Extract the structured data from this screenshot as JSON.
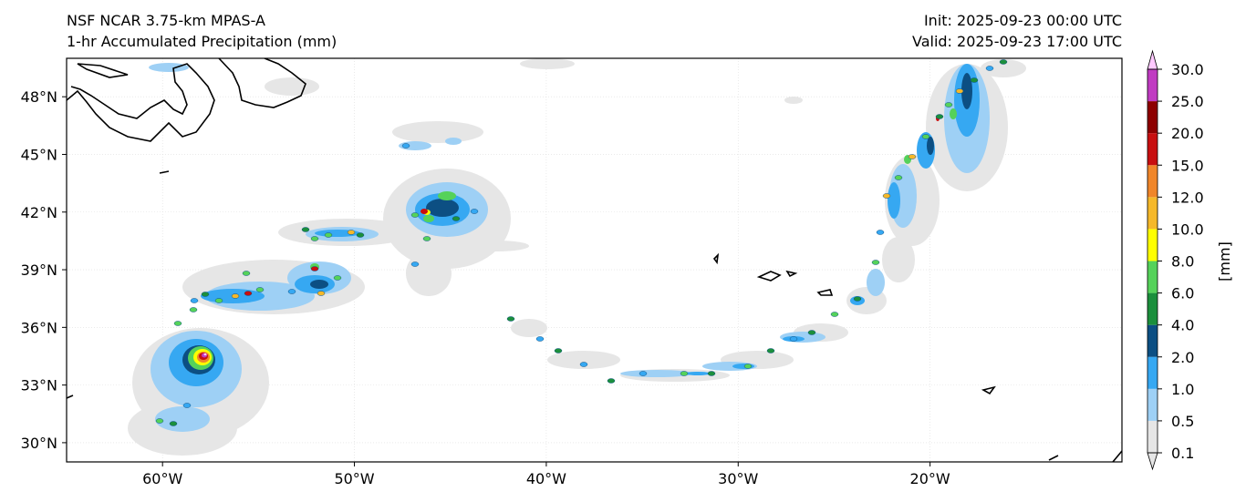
{
  "header": {
    "model_title": "NSF NCAR 3.75-km MPAS-A",
    "field_title": "1-hr Accumulated Precipitation (mm)",
    "init_label": "Init: 2025-09-23 00:00 UTC",
    "valid_label": "Valid: 2025-09-23 17:00 UTC"
  },
  "map": {
    "lon_range": [
      -65,
      -10
    ],
    "lat_range": [
      29,
      50
    ],
    "lat_ticks": [
      {
        "value": 48,
        "label": "48°N"
      },
      {
        "value": 45,
        "label": "45°N"
      },
      {
        "value": 42,
        "label": "42°N"
      },
      {
        "value": 39,
        "label": "39°N"
      },
      {
        "value": 36,
        "label": "36°N"
      },
      {
        "value": 33,
        "label": "33°N"
      },
      {
        "value": 30,
        "label": "30°N"
      }
    ],
    "lon_ticks": [
      {
        "value": -60,
        "label": "60°W"
      },
      {
        "value": -50,
        "label": "50°W"
      },
      {
        "value": -40,
        "label": "40°W"
      },
      {
        "value": -30,
        "label": "30°W"
      },
      {
        "value": -20,
        "label": "20°W"
      }
    ]
  },
  "colorbar": {
    "unit_label": "[mm]",
    "levels": [
      "0.1",
      "0.5",
      "1.0",
      "2.0",
      "4.0",
      "6.0",
      "8.0",
      "10.0",
      "12.0",
      "15.0",
      "20.0",
      "25.0",
      "30.0"
    ],
    "colors": [
      "#e6e6e6",
      "#9ed0f5",
      "#36a8f2",
      "#0c4f83",
      "#1b8f3c",
      "#55d25a",
      "#ffff00",
      "#f5b82a",
      "#f0862a",
      "#c80f10",
      "#8d0000",
      "#c03bc2",
      "#ffc9ff"
    ]
  },
  "colors": {
    "coast": "#000000",
    "grid": "#dddddd"
  }
}
